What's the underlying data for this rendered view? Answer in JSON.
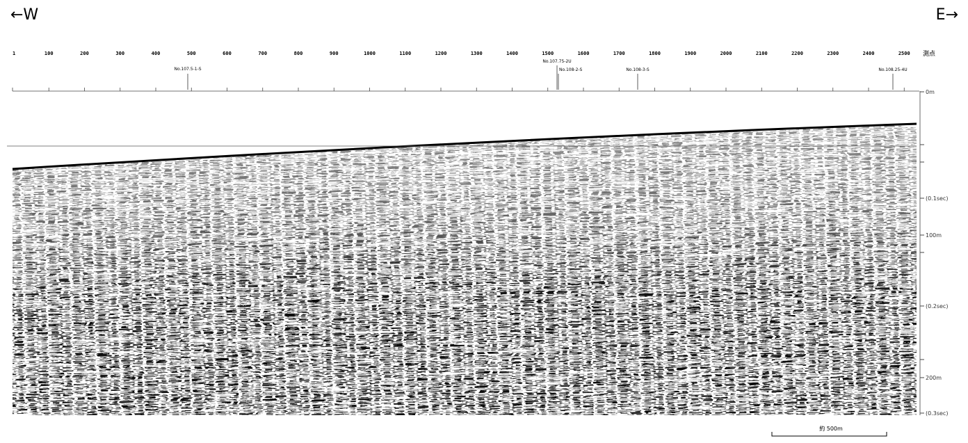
{
  "direction": {
    "west": "←W",
    "east": "E→"
  },
  "stations": {
    "ticks": [
      "1",
      "100",
      "200",
      "300",
      "400",
      "500",
      "600",
      "700",
      "800",
      "900",
      "1000",
      "1100",
      "1200",
      "1300",
      "1400",
      "1500",
      "1600",
      "1700",
      "1800",
      "1900",
      "2000",
      "2100",
      "2200",
      "2300",
      "2400",
      "2500"
    ],
    "unit": "測点"
  },
  "boreholes": [
    "No.107.5-1-S",
    "No.107.75-2U",
    "No.108-2-S",
    "No.108-3-S",
    "No.108.25-4U"
  ],
  "depth_labels": [
    "0m",
    "(0.1sec)",
    "100m",
    "(0.2sec)",
    "200m",
    "(0.3sec)"
  ],
  "scale_bar": "約 500m"
}
